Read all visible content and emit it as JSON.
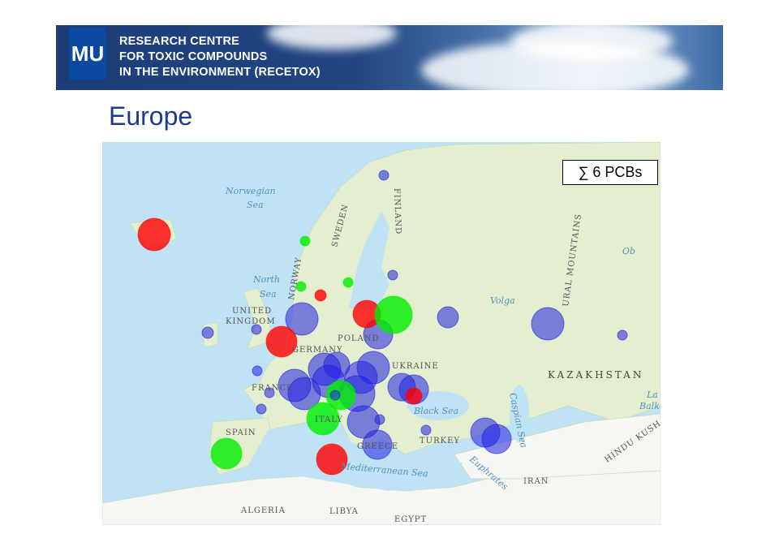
{
  "header": {
    "logo": "MU",
    "lines": [
      "RESEARCH CENTRE",
      "FOR TOXIC COMPOUNDS",
      "IN THE ENVIRONMENT (RECETOX)"
    ]
  },
  "title": "Europe",
  "legend": "∑ 6 PCBs",
  "map": {
    "colors": {
      "sea": "#bfe3f5",
      "land": "#e3efcf",
      "red": "#ff0000",
      "green": "#00ee00",
      "blue": "#2020e0"
    },
    "labels": {
      "norwegian": "Norwegian",
      "sea1": "Sea",
      "north": "North",
      "sea2": "Sea",
      "norway": "NORWAY",
      "sweden": "SWEDEN",
      "finland": "FINLAND",
      "uk1": "UNITED",
      "uk2": "KINGDOM",
      "poland": "POLAND",
      "germany": "GERMANY",
      "ukraine": "UKRAINE",
      "france": "FRANCE",
      "italy": "ITALY",
      "spain": "SPAIN",
      "greece": "GREECE",
      "turkey": "TURKEY",
      "black_sea": "Black Sea",
      "caspian": "Caspian Sea",
      "med": "Mediterranean Sea",
      "kazakhstan": "KAZAKHSTAN",
      "ural": "URAL MOUNTAINS",
      "volga": "Volga",
      "ob": "Ob",
      "euphrates": "Euphrates",
      "iran": "IRAN",
      "hindu": "HINDU KUSH",
      "algeria": "ALGERIA",
      "libya": "LIBYA",
      "egypt": "EGYPT",
      "lake": "La",
      "balk": "Balk"
    }
  }
}
